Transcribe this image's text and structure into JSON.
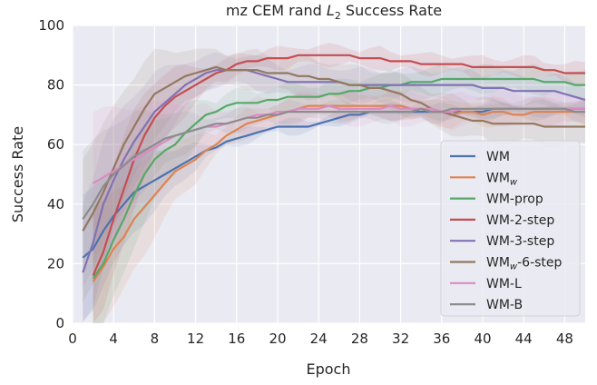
{
  "chart_data": {
    "type": "line",
    "title_main": "mz CEM rand ",
    "title_sym": "L",
    "title_sub": "2",
    "title_rest": " Success Rate",
    "xlabel": "Epoch",
    "ylabel": "Success Rate",
    "xlim": [
      0,
      50
    ],
    "ylim": [
      0,
      100
    ],
    "xticks": [
      0,
      4,
      8,
      12,
      16,
      20,
      24,
      28,
      32,
      36,
      40,
      44,
      48
    ],
    "yticks": [
      0,
      20,
      40,
      60,
      80,
      100
    ],
    "grid": true,
    "legend_position": "lower-right",
    "series": [
      {
        "name": "WM",
        "name_sub": "",
        "name_suffix": "",
        "color": "#4c72b0",
        "band": 2,
        "x": [
          1,
          2,
          3,
          4,
          5,
          6,
          7,
          8,
          9,
          10,
          11,
          12,
          13,
          14,
          15,
          16,
          17,
          18,
          19,
          20,
          21,
          22,
          23,
          24,
          25,
          26,
          27,
          28,
          29,
          30,
          31,
          32,
          33,
          34,
          35,
          36,
          37,
          38,
          39,
          40,
          41,
          42,
          43,
          44,
          45,
          46,
          47,
          48,
          49,
          50
        ],
        "values": [
          22,
          25,
          31,
          36,
          40,
          44,
          46,
          48,
          50,
          52,
          54,
          56,
          58,
          59,
          61,
          62,
          63,
          64,
          65,
          66,
          66,
          66,
          66,
          67,
          68,
          69,
          70,
          70,
          71,
          71,
          71,
          71,
          71,
          71,
          71,
          71,
          71,
          71,
          71,
          71,
          72,
          72,
          72,
          72,
          72,
          72,
          72,
          72,
          72,
          72
        ]
      },
      {
        "name": "WM",
        "name_sub": "w",
        "name_suffix": "",
        "color": "#dd8452",
        "band": 4,
        "x": [
          2,
          3,
          4,
          5,
          6,
          7,
          8,
          9,
          10,
          11,
          12,
          13,
          14,
          15,
          16,
          17,
          18,
          19,
          20,
          21,
          22,
          23,
          24,
          25,
          26,
          27,
          28,
          29,
          30,
          31,
          32,
          33,
          34,
          35,
          36,
          37,
          38,
          39,
          40,
          41,
          42,
          43,
          44,
          45,
          46,
          47,
          48,
          49,
          50
        ],
        "values": [
          14,
          19,
          25,
          29,
          35,
          39,
          43,
          47,
          51,
          53,
          55,
          58,
          60,
          63,
          65,
          67,
          68,
          69,
          70,
          71,
          72,
          73,
          73,
          73,
          73,
          73,
          73,
          73,
          73,
          73,
          73,
          72,
          72,
          71,
          71,
          70,
          71,
          71,
          70,
          71,
          71,
          70,
          70,
          71,
          71,
          71,
          71,
          71,
          71
        ]
      },
      {
        "name": "WM-prop",
        "name_sub": "",
        "name_suffix": "",
        "color": "#55a868",
        "band": 4,
        "x": [
          2,
          3,
          4,
          5,
          6,
          7,
          8,
          9,
          10,
          11,
          12,
          13,
          14,
          15,
          16,
          17,
          18,
          19,
          20,
          21,
          22,
          23,
          24,
          25,
          26,
          27,
          28,
          29,
          30,
          31,
          32,
          33,
          34,
          35,
          36,
          37,
          38,
          39,
          40,
          41,
          42,
          43,
          44,
          45,
          46,
          47,
          48,
          49,
          50
        ],
        "values": [
          15,
          20,
          28,
          35,
          43,
          50,
          55,
          58,
          60,
          64,
          67,
          70,
          71,
          73,
          74,
          74,
          74,
          75,
          75,
          76,
          76,
          76,
          76,
          77,
          77,
          78,
          78,
          79,
          79,
          80,
          80,
          81,
          81,
          81,
          82,
          82,
          82,
          82,
          82,
          82,
          82,
          82,
          82,
          82,
          81,
          81,
          81,
          80,
          80
        ]
      },
      {
        "name": "WM-2-step",
        "name_sub": "",
        "name_suffix": "",
        "color": "#c44e52",
        "band": 3,
        "x": [
          2,
          3,
          4,
          5,
          6,
          7,
          8,
          9,
          10,
          11,
          12,
          13,
          14,
          15,
          16,
          17,
          18,
          19,
          20,
          21,
          22,
          23,
          24,
          25,
          26,
          27,
          28,
          29,
          30,
          31,
          32,
          33,
          34,
          35,
          36,
          37,
          38,
          39,
          40,
          41,
          42,
          43,
          44,
          45,
          46,
          47,
          48,
          49,
          50
        ],
        "values": [
          16,
          24,
          35,
          45,
          55,
          63,
          69,
          73,
          76,
          78,
          80,
          82,
          84,
          85,
          87,
          88,
          88,
          89,
          89,
          89,
          90,
          90,
          90,
          90,
          90,
          90,
          89,
          89,
          89,
          88,
          88,
          88,
          87,
          87,
          87,
          87,
          87,
          86,
          86,
          86,
          86,
          86,
          86,
          86,
          85,
          85,
          84,
          84,
          84
        ]
      },
      {
        "name": "WM-3-step",
        "name_sub": "",
        "name_suffix": "",
        "color": "#8172b3",
        "band": 5,
        "x": [
          1,
          2,
          3,
          4,
          5,
          6,
          7,
          8,
          9,
          10,
          11,
          12,
          13,
          14,
          15,
          16,
          17,
          18,
          19,
          20,
          21,
          22,
          23,
          24,
          25,
          26,
          27,
          28,
          29,
          30,
          31,
          32,
          33,
          34,
          35,
          36,
          37,
          38,
          39,
          40,
          41,
          42,
          43,
          44,
          45,
          46,
          47,
          48,
          49,
          50
        ],
        "values": [
          17,
          27,
          40,
          48,
          55,
          61,
          66,
          71,
          74,
          77,
          80,
          82,
          84,
          85,
          85,
          85,
          85,
          84,
          83,
          82,
          81,
          81,
          81,
          81,
          81,
          81,
          80,
          80,
          80,
          80,
          80,
          80,
          80,
          80,
          80,
          80,
          80,
          80,
          80,
          79,
          79,
          79,
          78,
          78,
          78,
          78,
          78,
          77,
          76,
          75
        ]
      },
      {
        "name": "WM",
        "name_sub": "w",
        "name_suffix": "-6-step",
        "color": "#937860",
        "band": 6,
        "x": [
          1,
          2,
          3,
          4,
          5,
          6,
          7,
          8,
          9,
          10,
          11,
          12,
          13,
          14,
          15,
          16,
          17,
          18,
          19,
          20,
          21,
          22,
          23,
          24,
          25,
          26,
          27,
          28,
          29,
          30,
          31,
          32,
          33,
          34,
          35,
          36,
          37,
          38,
          39,
          40,
          41,
          42,
          43,
          44,
          45,
          46,
          47,
          48,
          49,
          50
        ],
        "values": [
          31,
          37,
          44,
          52,
          60,
          66,
          72,
          77,
          79,
          81,
          83,
          84,
          85,
          86,
          85,
          85,
          85,
          85,
          84,
          84,
          84,
          83,
          83,
          82,
          82,
          81,
          80,
          80,
          79,
          79,
          78,
          77,
          75,
          74,
          72,
          71,
          70,
          69,
          68,
          68,
          67,
          67,
          67,
          67,
          67,
          66,
          66,
          66,
          66,
          66
        ]
      },
      {
        "name": "WM-L",
        "name_sub": "",
        "name_suffix": "",
        "color": "#da8bc3",
        "band": 5,
        "x": [
          2,
          3,
          4,
          5,
          6,
          7,
          8,
          9,
          10,
          11,
          12,
          13,
          14,
          15,
          16,
          17,
          18,
          19,
          20,
          21,
          22,
          23,
          24,
          25,
          26,
          27,
          28,
          29,
          30,
          31,
          32,
          33,
          34,
          35,
          36,
          37,
          38,
          39,
          40,
          41,
          42,
          43,
          44,
          45,
          46,
          47,
          48,
          49,
          50
        ],
        "values": [
          47,
          49,
          51,
          53,
          55,
          57,
          59,
          61,
          63,
          64,
          65,
          66,
          66,
          67,
          68,
          69,
          70,
          70,
          71,
          71,
          72,
          72,
          72,
          73,
          72,
          72,
          72,
          72,
          72,
          73,
          72,
          72,
          72,
          72,
          71,
          71,
          72,
          72,
          72,
          72,
          72,
          72,
          72,
          72,
          72,
          72,
          72,
          72,
          72
        ]
      },
      {
        "name": "WM-B",
        "name_sub": "",
        "name_suffix": "",
        "color": "#8c8c8c",
        "band": 3,
        "x": [
          1,
          2,
          3,
          4,
          5,
          6,
          7,
          8,
          9,
          10,
          11,
          12,
          13,
          14,
          15,
          16,
          17,
          18,
          19,
          20,
          21,
          22,
          23,
          24,
          25,
          26,
          27,
          28,
          29,
          30,
          31,
          32,
          33,
          34,
          35,
          36,
          37,
          38,
          39,
          40,
          41,
          42,
          43,
          44,
          45,
          46,
          47,
          48,
          49,
          50
        ],
        "values": [
          35,
          40,
          46,
          50,
          53,
          56,
          58,
          60,
          62,
          63,
          64,
          65,
          66,
          67,
          67,
          68,
          69,
          69,
          70,
          70,
          71,
          71,
          71,
          71,
          71,
          71,
          71,
          71,
          71,
          71,
          71,
          71,
          71,
          72,
          71,
          71,
          72,
          72,
          72,
          72,
          72,
          72,
          72,
          72,
          72,
          72,
          72,
          72,
          71,
          71
        ]
      }
    ]
  }
}
